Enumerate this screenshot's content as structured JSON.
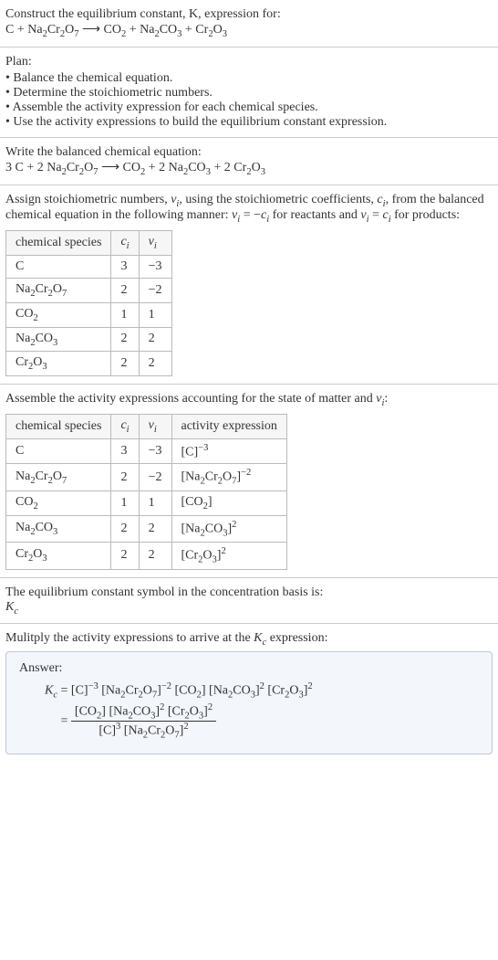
{
  "prompt": {
    "line1": "Construct the equilibrium constant, K, expression for:",
    "eq_lhs_a": "C + Na",
    "eq_lhs_b": "Cr",
    "eq_lhs_c": "O",
    "arrow": " ⟶ ",
    "eq_rhs_a": "CO",
    "eq_rhs_b": " + Na",
    "eq_rhs_c": "CO",
    "eq_rhs_d": " + Cr",
    "eq_rhs_e": "O",
    "s2": "2",
    "s7": "7",
    "s3": "3"
  },
  "plan": {
    "header": "Plan:",
    "items": [
      "Balance the chemical equation.",
      "Determine the stoichiometric numbers.",
      "Assemble the activity expression for each chemical species.",
      "Use the activity expressions to build the equilibrium constant expression."
    ]
  },
  "balanced": {
    "header": "Write the balanced chemical equation:",
    "t1": "3 C + 2 Na",
    "t2": "Cr",
    "t3": "O",
    "arrow": " ⟶ ",
    "t4": "CO",
    "t5": " + 2 Na",
    "t6": "CO",
    "t7": " + 2 Cr",
    "t8": "O"
  },
  "assign": {
    "p1": "Assign stoichiometric numbers, ",
    "nu": "ν",
    "sub_i": "i",
    "p2": ", using the stoichiometric coefficients, ",
    "c": "c",
    "p3": ", from the balanced chemical equation in the following manner: ",
    "eq_a": " = −",
    "p4": " for reactants and ",
    "eq_b": " = ",
    "p5": " for products:",
    "table": {
      "headers": [
        "chemical species",
        "c_i",
        "ν_i"
      ],
      "rows": [
        {
          "sp_a": "C",
          "sp_b": "",
          "sp_c": "",
          "sp_d": "",
          "sp_e": "",
          "sp_f": "",
          "sp_g": "",
          "c": "3",
          "nu": "−3"
        },
        {
          "sp_a": "Na",
          "sp_b": "2",
          "sp_c": "Cr",
          "sp_d": "2",
          "sp_e": "O",
          "sp_f": "7",
          "sp_g": "",
          "c": "2",
          "nu": "−2"
        },
        {
          "sp_a": "CO",
          "sp_b": "2",
          "sp_c": "",
          "sp_d": "",
          "sp_e": "",
          "sp_f": "",
          "sp_g": "",
          "c": "1",
          "nu": "1"
        },
        {
          "sp_a": "Na",
          "sp_b": "2",
          "sp_c": "CO",
          "sp_d": "3",
          "sp_e": "",
          "sp_f": "",
          "sp_g": "",
          "c": "2",
          "nu": "2"
        },
        {
          "sp_a": "Cr",
          "sp_b": "2",
          "sp_c": "O",
          "sp_d": "3",
          "sp_e": "",
          "sp_f": "",
          "sp_g": "",
          "c": "2",
          "nu": "2"
        }
      ]
    }
  },
  "activity": {
    "header_a": "Assemble the activity expressions accounting for the state of matter and ",
    "header_b": ":",
    "table": {
      "headers": [
        "chemical species",
        "c_i",
        "ν_i",
        "activity expression"
      ],
      "rows": [
        {
          "sp_a": "C",
          "sp_b": "",
          "sp_c": "",
          "sp_d": "",
          "sp_e": "",
          "sp_f": "",
          "c": "3",
          "nu": "−3",
          "ax_a": "[C]",
          "ax_exp": "−3",
          "ax_b": ""
        },
        {
          "sp_a": "Na",
          "sp_b": "2",
          "sp_c": "Cr",
          "sp_d": "2",
          "sp_e": "O",
          "sp_f": "7",
          "c": "2",
          "nu": "−2",
          "ax_a": "[Na",
          "ax_sub1": "2",
          "ax_mid": "Cr",
          "ax_sub2": "2",
          "ax_mid2": "O",
          "ax_sub3": "7",
          "ax_close": "]",
          "ax_exp": "−2"
        },
        {
          "sp_a": "CO",
          "sp_b": "2",
          "sp_c": "",
          "sp_d": "",
          "sp_e": "",
          "sp_f": "",
          "c": "1",
          "nu": "1",
          "ax_a": "[CO",
          "ax_sub1": "2",
          "ax_close": "]",
          "ax_exp": ""
        },
        {
          "sp_a": "Na",
          "sp_b": "2",
          "sp_c": "CO",
          "sp_d": "3",
          "sp_e": "",
          "sp_f": "",
          "c": "2",
          "nu": "2",
          "ax_a": "[Na",
          "ax_sub1": "2",
          "ax_mid": "CO",
          "ax_sub2": "3",
          "ax_close": "]",
          "ax_exp": "2"
        },
        {
          "sp_a": "Cr",
          "sp_b": "2",
          "sp_c": "O",
          "sp_d": "3",
          "sp_e": "",
          "sp_f": "",
          "c": "2",
          "nu": "2",
          "ax_a": "[Cr",
          "ax_sub1": "2",
          "ax_mid": "O",
          "ax_sub2": "3",
          "ax_close": "]",
          "ax_exp": "2"
        }
      ]
    }
  },
  "kc_symbol": {
    "line1": "The equilibrium constant symbol in the concentration basis is:",
    "K": "K",
    "c": "c"
  },
  "multiply": {
    "text_a": "Mulitply the activity expressions to arrive at the ",
    "text_b": " expression:"
  },
  "answer": {
    "label": "Answer:",
    "K": "K",
    "c": "c",
    "eq": " = ",
    "line1": {
      "a": "[C]",
      "exp1": "−3",
      "sp": " ",
      "b": "[Na",
      "b_s1": "2",
      "b_m": "Cr",
      "b_s2": "2",
      "b_m2": "O",
      "b_s3": "7",
      "b_close": "]",
      "exp2": "−2",
      "c": "[CO",
      "c_s1": "2",
      "c_close": "] ",
      "d": "[Na",
      "d_s1": "2",
      "d_m": "CO",
      "d_s2": "3",
      "d_close": "]",
      "exp3": "2",
      "e": "[Cr",
      "e_s1": "2",
      "e_m": "O",
      "e_s2": "3",
      "e_close": "]",
      "exp4": "2"
    },
    "frac": {
      "num": {
        "a": "[CO",
        "a_s1": "2",
        "a_close": "] ",
        "b": "[Na",
        "b_s1": "2",
        "b_m": "CO",
        "b_s2": "3",
        "b_close": "]",
        "exp1": "2",
        "c": " [Cr",
        "c_s1": "2",
        "c_m": "O",
        "c_s2": "3",
        "c_close": "]",
        "exp2": "2"
      },
      "den": {
        "a": "[C]",
        "exp1": "3",
        "b": " [Na",
        "b_s1": "2",
        "b_m": "Cr",
        "b_s2": "2",
        "b_m2": "O",
        "b_s3": "7",
        "b_close": "]",
        "exp2": "2"
      }
    }
  }
}
